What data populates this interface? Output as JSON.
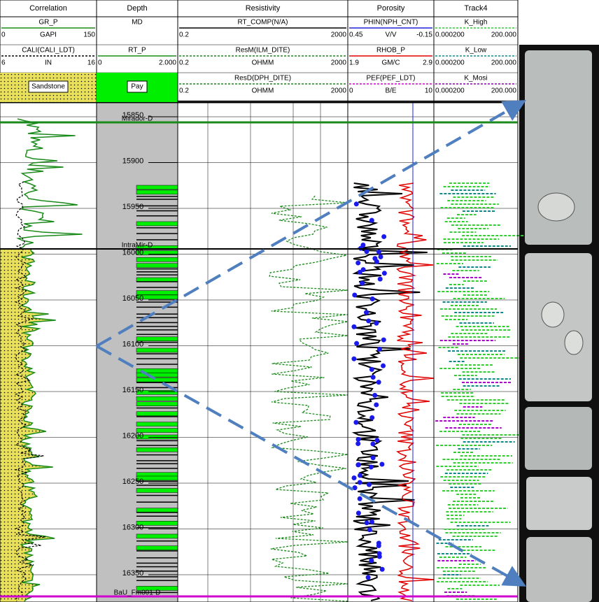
{
  "tracks": [
    {
      "title": "Correlation",
      "curves": [
        {
          "name": "GR_P",
          "left": "0",
          "unit": "GAPI",
          "right": "150",
          "color": "#1a8a1a",
          "dash": false
        },
        {
          "name": "CALI(CALI_LDT)",
          "left": "6",
          "unit": "IN",
          "right": "16",
          "color": "#000000",
          "dash": true
        }
      ],
      "fill": "Sandstone"
    },
    {
      "title": "Depth",
      "curves": [
        {
          "name": "MD"
        },
        {
          "name": "RT_P",
          "left": "0",
          "right": "2.000",
          "color": "#1a8a1a",
          "dash": false
        }
      ],
      "fill": "Pay"
    },
    {
      "title": "Resistivity",
      "curves": [
        {
          "name": "RT_COMP(N/A)",
          "left": "0.2",
          "right": "2000",
          "color": "#000000",
          "dash": false
        },
        {
          "name": "ResM(ILM_DITE)",
          "left": "0.2",
          "unit": "OHMM",
          "right": "2000",
          "color": "#1a8a1a",
          "dash": true
        },
        {
          "name": "ResD(DPH_DITE)",
          "left": "0.2",
          "unit": "OHMM",
          "right": "2000",
          "color": "#1a8a1a",
          "dash": true
        }
      ]
    },
    {
      "title": "Porosity",
      "curves": [
        {
          "name": "PHIN(NPH_CNT)",
          "left": "0.45",
          "unit": "V/V",
          "right": "-0.15",
          "color": "#2020e0",
          "dash": false
        },
        {
          "name": "RHOB_P",
          "left": "1.9",
          "unit": "GM/C",
          "right": "2.9",
          "color": "#e00000",
          "dash": false
        },
        {
          "name": "PEF(PEF_LDT)",
          "left": "0",
          "unit": "B/E",
          "right": "10",
          "color": "#d000d0",
          "dash": true
        }
      ]
    },
    {
      "title": "Track4",
      "curves": [
        {
          "name": "K_High",
          "left": "0.000200",
          "right": "200.000",
          "color": "#33cc33",
          "dash": true
        },
        {
          "name": "K_Low",
          "left": "0.000200",
          "right": "200.000",
          "color": "#118888",
          "dash": true
        },
        {
          "name": "K_Mosi",
          "left": "0.000200",
          "right": "200.000",
          "color": "#8800aa",
          "dash": true
        }
      ]
    }
  ],
  "depth_labels": [
    "15850",
    "15900",
    "15950",
    "16000",
    "16050",
    "16100",
    "16150",
    "16200",
    "16250",
    "16300",
    "16350"
  ],
  "tops": [
    {
      "name": "Mirador-D",
      "color": "#1a8a1a"
    },
    {
      "name": "IntraMir-D",
      "color": "#000000"
    },
    {
      "name": "BaU_Fm001-D",
      "color": "#d000d0"
    }
  ]
}
